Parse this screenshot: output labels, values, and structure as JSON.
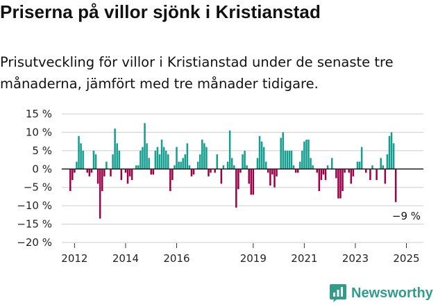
{
  "header": {
    "title": "Priserna på villor sjönk i Kristianstad",
    "subtitle": "Prisutveckling för villor i Kristianstad under de senaste tre månaderna, jämfört med tre månader tidigare."
  },
  "brand": {
    "name": "Newsworthy",
    "icon": "newsworthy-logo-icon",
    "color": "#2f9d8a"
  },
  "colors": {
    "positive": "#139e8f",
    "negative": "#9c0048",
    "grid": "#cccccc",
    "zero": "#222222"
  },
  "chart_data": {
    "type": "bar",
    "title": "Priserna på villor sjönk i Kristianstad",
    "ylim": [
      -20,
      15
    ],
    "ytick_values": [
      15,
      10,
      5,
      0,
      -5,
      -10,
      -15,
      -20
    ],
    "ytick_labels": [
      "15 %",
      "10 %",
      "5 %",
      "0 %",
      "−5 %",
      "−10 %",
      "−15 %",
      "−20 %"
    ],
    "xlim": [
      "2011-07",
      "2025-09"
    ],
    "xtick_labels": [
      {
        "date": "2012-01",
        "label": "2012"
      },
      {
        "date": "2014-01",
        "label": "2014"
      },
      {
        "date": "2016-01",
        "label": "2016"
      },
      {
        "date": "2019-01",
        "label": "2019"
      },
      {
        "date": "2021-01",
        "label": "2021"
      },
      {
        "date": "2023-01",
        "label": "2023"
      },
      {
        "date": "2025-01",
        "label": "2025"
      }
    ],
    "grid": true,
    "positive_color": "#139e8f",
    "negative_color": "#9c0048",
    "annotation": {
      "text": "−9 %",
      "date": "2025-01",
      "value": -9
    },
    "start": "2011-11",
    "values": [
      -6,
      -3,
      -1,
      2,
      9,
      7,
      5,
      0,
      -1,
      -2,
      -1,
      5,
      4,
      -4,
      -13.5,
      -6,
      -2,
      2,
      0,
      -2,
      4,
      11,
      7,
      5,
      -3,
      0,
      -1,
      -4,
      -2,
      -3,
      0,
      1,
      1,
      5,
      6,
      12.5,
      7,
      3,
      -1.5,
      -1.5,
      5,
      6,
      4,
      8,
      6,
      5,
      4,
      -6,
      -3,
      1,
      6,
      2,
      2,
      3,
      4,
      7,
      1,
      -2,
      -1.5,
      0,
      2,
      4,
      8,
      7,
      6,
      -2,
      -1,
      0,
      -1,
      4,
      0,
      -4,
      1,
      0,
      2,
      10.5,
      3,
      1,
      -10.5,
      -5.5,
      -1,
      4,
      5,
      1,
      -4,
      -7,
      -7,
      0,
      3,
      9,
      7.5,
      6,
      2,
      -1,
      -4.5,
      -1.5,
      -5,
      -2,
      0,
      8.5,
      10,
      5,
      5,
      5,
      5,
      1,
      -1,
      -1,
      2,
      5,
      7.5,
      8,
      8,
      3,
      1,
      0,
      -1,
      -6,
      -3,
      -1.5,
      -3,
      1,
      0,
      3,
      0,
      -2.5,
      -8,
      -8,
      -6,
      -1,
      0,
      -1,
      -4,
      -2,
      0,
      2,
      2,
      6,
      0,
      -1,
      0,
      -3,
      1,
      0,
      -3,
      0,
      3,
      1,
      -4,
      4,
      9,
      10,
      7,
      -9
    ]
  }
}
